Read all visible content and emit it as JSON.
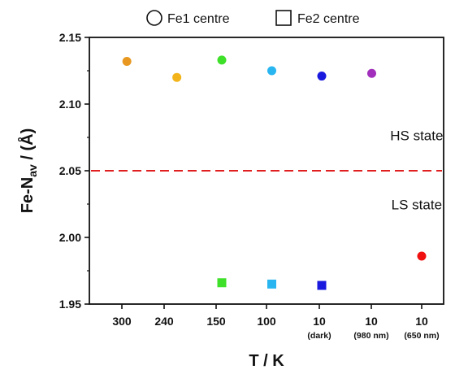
{
  "chart_data": {
    "type": "scatter",
    "categories": [
      "300",
      "240",
      "150",
      "100",
      "10",
      "10",
      "10"
    ],
    "category_sublabels": [
      "",
      "",
      "",
      "",
      "(dark)",
      "(980 nm)",
      "(650 nm)"
    ],
    "xlabel": "T / K",
    "ylabel_main": "Fe-N",
    "ylabel_sub": "av",
    "ylabel_tail": " / (Å)",
    "ylim": [
      1.95,
      2.15
    ],
    "yticks": [
      "1.95",
      "2.00",
      "2.05",
      "2.10",
      "2.15"
    ],
    "series": [
      {
        "name": "Fe1 centre",
        "marker": "circle",
        "points": [
          {
            "x": 0.1,
            "y": 2.132,
            "color": "#e89820"
          },
          {
            "x": 1.1,
            "y": 2.12,
            "color": "#f2b41a"
          },
          {
            "x": 2.0,
            "y": 2.133,
            "color": "#3fe02a"
          },
          {
            "x": 3.0,
            "y": 2.125,
            "color": "#29b6f0"
          },
          {
            "x": 4.0,
            "y": 2.121,
            "color": "#1a1adf"
          },
          {
            "x": 5.0,
            "y": 2.123,
            "color": "#a12fbb"
          },
          {
            "x": 6.0,
            "y": 1.986,
            "color": "#f01010"
          }
        ]
      },
      {
        "name": "Fe2 centre",
        "marker": "square",
        "points": [
          {
            "x": 2.0,
            "y": 1.966,
            "color": "#3fe02a"
          },
          {
            "x": 3.0,
            "y": 1.965,
            "color": "#29b6f0"
          },
          {
            "x": 4.0,
            "y": 1.964,
            "color": "#1a1adf"
          }
        ]
      }
    ],
    "reference_line": {
      "y": 2.05,
      "color": "#e02020",
      "style": "dashed"
    },
    "annotations": [
      {
        "text": "HS state",
        "x": 5.9,
        "y": 2.073
      },
      {
        "text": "LS state",
        "x": 5.9,
        "y": 2.021
      }
    ],
    "legend_placement": "top",
    "grid": false
  }
}
